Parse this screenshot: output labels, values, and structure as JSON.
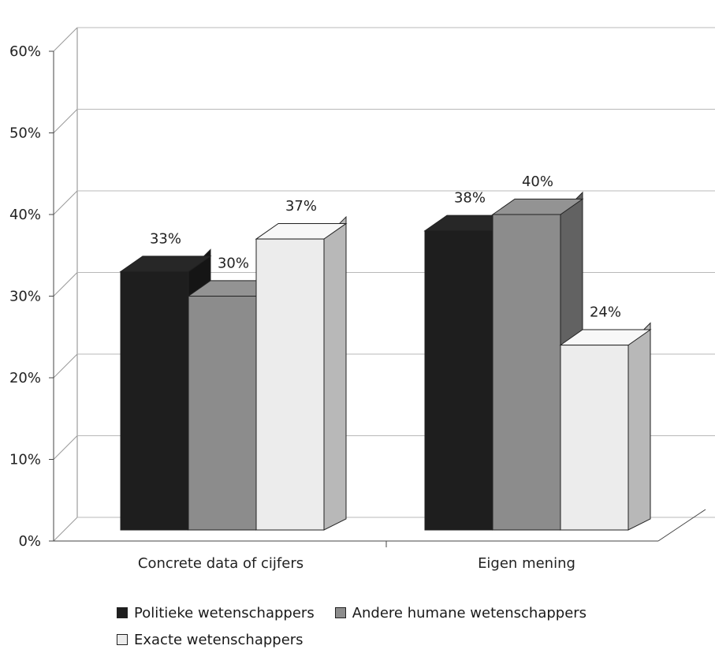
{
  "chart_data": {
    "type": "bar",
    "title": "",
    "xlabel": "",
    "ylabel": "",
    "ylim": [
      0,
      60
    ],
    "yticks": [
      0,
      10,
      20,
      30,
      40,
      50,
      60
    ],
    "ytick_labels": [
      "0%",
      "10%",
      "20%",
      "30%",
      "40%",
      "50%",
      "60%"
    ],
    "categories": [
      "Concrete data of cijfers",
      "Eigen mening"
    ],
    "series": [
      {
        "name": "Politieke wetenschappers",
        "values": [
          33,
          38
        ],
        "labels": [
          "33%",
          "38%"
        ],
        "color": "#1e1e1e"
      },
      {
        "name": "Andere humane wetenschappers",
        "values": [
          30,
          40
        ],
        "labels": [
          "30%",
          "40%"
        ],
        "color": "#8c8c8c"
      },
      {
        "name": "Exacte wetenschappers",
        "values": [
          37,
          24
        ],
        "labels": [
          "37%",
          "24%"
        ],
        "color": "#ececec"
      }
    ],
    "grid": true,
    "style": "3d",
    "legend_position": "bottom"
  }
}
